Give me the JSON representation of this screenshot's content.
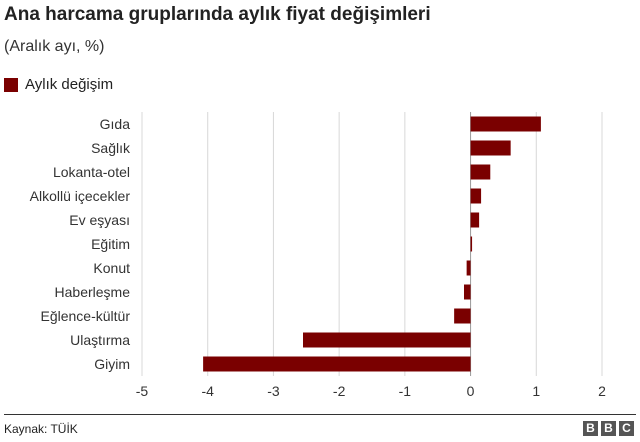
{
  "header": {
    "title": "Ana harcama gruplarında aylık fiyat değişimleri",
    "subtitle": "(Aralık ayı, %)"
  },
  "legend": {
    "label": "Aylık değişim",
    "color": "#7a0000"
  },
  "footer": {
    "source": "Kaynak: TÜİK",
    "brand": [
      "B",
      "B",
      "C"
    ]
  },
  "chart_data": {
    "type": "bar",
    "orientation": "horizontal",
    "categories": [
      "Gıda",
      "Sağlık",
      "Lokanta-otel",
      "Alkollü içecekler",
      "Ev eşyası",
      "Eğitim",
      "Konut",
      "Haberleşme",
      "Eğlence-kültür",
      "Ulaştırma",
      "Giyim"
    ],
    "series": [
      {
        "name": "Aylık değişim",
        "values": [
          1.07,
          0.61,
          0.3,
          0.16,
          0.13,
          0.02,
          -0.06,
          -0.1,
          -0.25,
          -2.55,
          -4.07
        ]
      }
    ],
    "xlim": [
      -5,
      2
    ],
    "xticks": [
      -5,
      -4,
      -3,
      -2,
      -1,
      0,
      1,
      2
    ],
    "grid": true,
    "legend_position": "top-left",
    "bar_color": "#7a0000"
  }
}
